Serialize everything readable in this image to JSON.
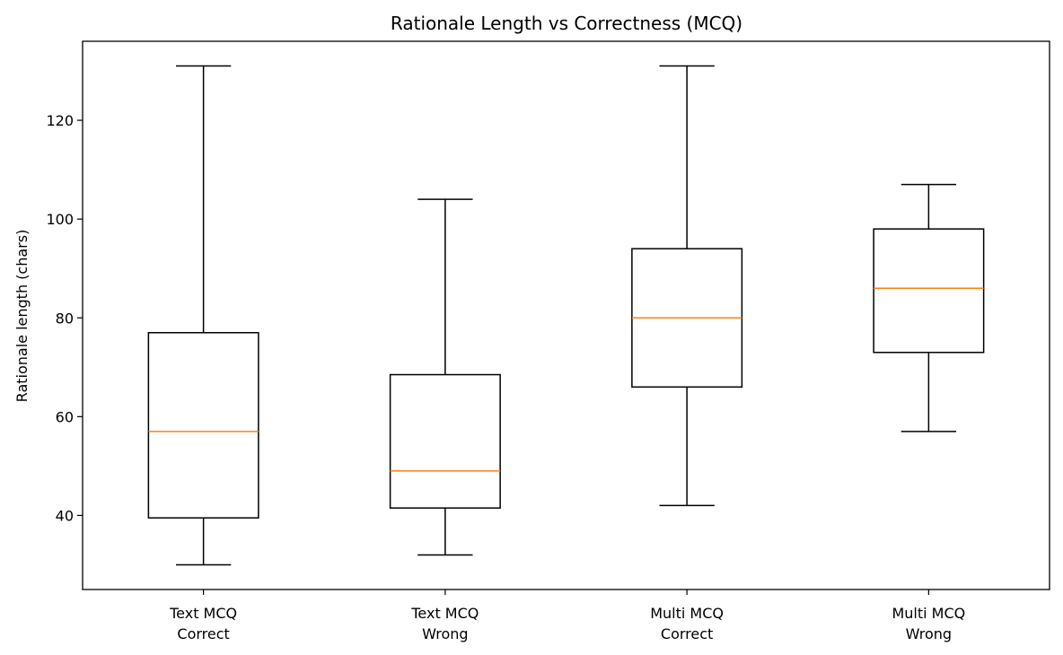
{
  "chart_data": {
    "type": "box",
    "title": "Rationale Length vs Correctness (MCQ)",
    "xlabel": "",
    "ylabel": "Rationale length (chars)",
    "ylim": [
      25,
      136
    ],
    "yticks": [
      40,
      60,
      80,
      100,
      120
    ],
    "grid": false,
    "categories": [
      [
        "Text MCQ",
        "Correct"
      ],
      [
        "Text MCQ",
        "Wrong"
      ],
      [
        "Multi MCQ",
        "Correct"
      ],
      [
        "Multi MCQ",
        "Wrong"
      ]
    ],
    "boxes": [
      {
        "whisker_low": 30,
        "q1": 39.5,
        "median": 57,
        "q3": 77,
        "whisker_high": 131
      },
      {
        "whisker_low": 32,
        "q1": 41.5,
        "median": 49,
        "q3": 68.5,
        "whisker_high": 104
      },
      {
        "whisker_low": 42,
        "q1": 66,
        "median": 80,
        "q3": 94,
        "whisker_high": 131
      },
      {
        "whisker_low": 57,
        "q1": 73,
        "median": 86,
        "q3": 98,
        "whisker_high": 107
      }
    ],
    "colors": {
      "box": "#000000",
      "median": "#ff7f0e"
    }
  }
}
